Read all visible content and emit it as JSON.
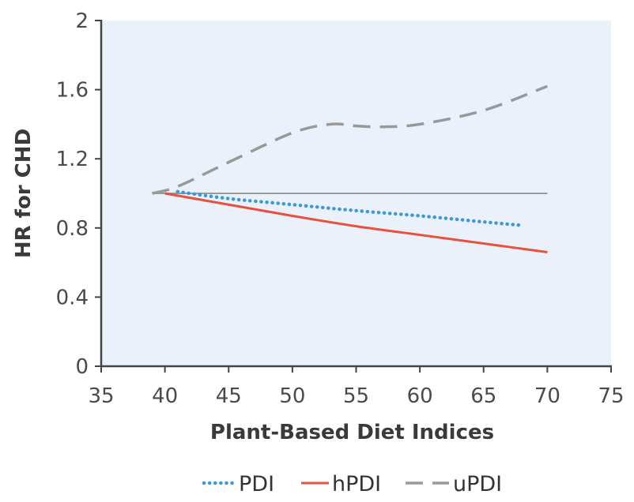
{
  "chart_data": {
    "type": "line",
    "title": "",
    "xlabel": "Plant-Based Diet Indices",
    "ylabel": "HR for CHD",
    "xlim": [
      35,
      75
    ],
    "ylim": [
      0,
      2
    ],
    "x_ticks": [
      "35",
      "40",
      "45",
      "50",
      "55",
      "60",
      "65",
      "70",
      "75"
    ],
    "y_ticks": [
      "0",
      "0.4",
      "0.8",
      "1.2",
      "1.6",
      "2"
    ],
    "reference_line": {
      "y": 1.0,
      "x": [
        39,
        70
      ]
    },
    "grid": false,
    "plot_background": "#eaf1fa",
    "legend_position": "bottom",
    "series": [
      {
        "name": "PDI",
        "style": "dotted",
        "color": "#3a9ad9",
        "x": [
          41,
          45,
          50,
          55,
          60,
          65,
          68
        ],
        "y": [
          1.01,
          0.97,
          0.935,
          0.9,
          0.87,
          0.835,
          0.815
        ]
      },
      {
        "name": "hPDI",
        "style": "solid",
        "color": "#e8513f",
        "x": [
          40,
          45,
          50,
          55,
          60,
          65,
          70
        ],
        "y": [
          1.0,
          0.935,
          0.87,
          0.81,
          0.76,
          0.71,
          0.66
        ]
      },
      {
        "name": "uPDI",
        "style": "dashed",
        "color": "#999999",
        "x": [
          39,
          41,
          45,
          50,
          53,
          55,
          57,
          60,
          65,
          70
        ],
        "y": [
          1.0,
          1.04,
          1.18,
          1.35,
          1.4,
          1.39,
          1.385,
          1.4,
          1.48,
          1.62
        ]
      }
    ]
  }
}
